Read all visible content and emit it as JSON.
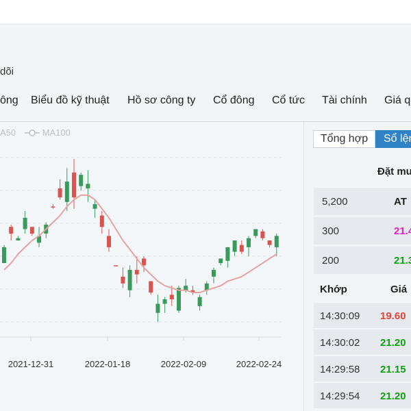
{
  "page": {
    "follow_label": "dõi",
    "tabs": [
      "ông",
      "Biểu đồ kỹ thuật",
      "Hồ sơ công ty",
      "Cổ đông",
      "Cổ tức",
      "Tài chính",
      "Giá q"
    ],
    "legend": {
      "ma50": "A50",
      "ma100": "MA100"
    }
  },
  "colors": {
    "up": "#3a9a5c",
    "down": "#d9534f",
    "ma_line": "#e5a3a0",
    "accent": "#2f82c6"
  },
  "chart_data": {
    "type": "candlestick",
    "x_tick_labels": [
      "2021-12-31",
      "2022-01-18",
      "2022-02-09",
      "2022-02-24"
    ],
    "grid": "horizontal dashed",
    "candles": [
      {
        "open": 20.3,
        "close": 21.0,
        "high": 21.1,
        "low": 20.3,
        "dir": "up"
      },
      {
        "open": 21.9,
        "close": 21.6,
        "high": 22.0,
        "low": 21.3,
        "dir": "down"
      },
      {
        "open": 21.3,
        "close": 21.4,
        "high": 21.5,
        "low": 21.3,
        "dir": "up"
      },
      {
        "open": 21.8,
        "close": 22.3,
        "high": 22.6,
        "low": 21.6,
        "dir": "up"
      },
      {
        "open": 21.9,
        "close": 21.6,
        "high": 21.9,
        "low": 21.5,
        "dir": "down"
      },
      {
        "open": 21.2,
        "close": 21.5,
        "high": 21.9,
        "low": 21.0,
        "dir": "up"
      },
      {
        "open": 21.6,
        "close": 22.0,
        "high": 22.1,
        "low": 21.4,
        "dir": "up"
      },
      {
        "open": 22.8,
        "close": 22.8,
        "high": 22.9,
        "low": 22.7,
        "dir": "down"
      },
      {
        "open": 23.6,
        "close": 23.2,
        "high": 24.0,
        "low": 23.1,
        "dir": "down"
      },
      {
        "open": 23.0,
        "close": 23.9,
        "high": 24.5,
        "low": 22.6,
        "dir": "up"
      },
      {
        "open": 24.3,
        "close": 23.2,
        "high": 24.9,
        "low": 22.7,
        "dir": "down"
      },
      {
        "open": 23.7,
        "close": 24.2,
        "high": 24.3,
        "low": 23.5,
        "dir": "up"
      },
      {
        "open": 23.6,
        "close": 23.8,
        "high": 24.4,
        "low": 23.0,
        "dir": "up"
      },
      {
        "open": 22.7,
        "close": 22.9,
        "high": 23.1,
        "low": 22.3,
        "dir": "up"
      },
      {
        "open": 22.4,
        "close": 21.9,
        "high": 22.6,
        "low": 21.6,
        "dir": "down"
      },
      {
        "open": 21.5,
        "close": 21.0,
        "high": 21.8,
        "low": 20.8,
        "dir": "down"
      },
      {
        "open": 20.2,
        "close": 20.2,
        "high": 20.2,
        "low": 20.2,
        "dir": "down"
      },
      {
        "open": 19.7,
        "close": 19.4,
        "high": 20.1,
        "low": 19.2,
        "dir": "down"
      },
      {
        "open": 19.1,
        "close": 20.0,
        "high": 20.2,
        "low": 18.8,
        "dir": "up"
      },
      {
        "open": 20.0,
        "close": 19.8,
        "high": 20.6,
        "low": 19.4,
        "dir": "down"
      },
      {
        "open": 20.5,
        "close": 20.2,
        "high": 20.6,
        "low": 19.9,
        "dir": "down"
      },
      {
        "open": 19.5,
        "close": 19.0,
        "high": 19.5,
        "low": 18.9,
        "dir": "down"
      },
      {
        "open": 18.1,
        "close": 18.5,
        "high": 18.9,
        "low": 17.7,
        "dir": "up"
      },
      {
        "open": 18.5,
        "close": 18.7,
        "high": 18.8,
        "low": 18.1,
        "dir": "up"
      },
      {
        "open": 18.9,
        "close": 18.7,
        "high": 19.3,
        "low": 18.4,
        "dir": "down"
      },
      {
        "open": 18.2,
        "close": 19.2,
        "high": 19.3,
        "low": 18.1,
        "dir": "up"
      },
      {
        "open": 19.1,
        "close": 19.3,
        "high": 19.6,
        "low": 19.0,
        "dir": "up"
      },
      {
        "open": 19.1,
        "close": 19.0,
        "high": 19.3,
        "low": 18.9,
        "dir": "down"
      },
      {
        "open": 18.4,
        "close": 18.8,
        "high": 18.9,
        "low": 18.2,
        "dir": "up"
      },
      {
        "open": 19.1,
        "close": 19.4,
        "high": 19.5,
        "low": 18.9,
        "dir": "up"
      },
      {
        "open": 19.7,
        "close": 20.0,
        "high": 20.1,
        "low": 19.4,
        "dir": "up"
      },
      {
        "open": 20.3,
        "close": 20.5,
        "high": 20.5,
        "low": 20.2,
        "dir": "up"
      },
      {
        "open": 20.4,
        "close": 21.0,
        "high": 21.0,
        "low": 20.1,
        "dir": "up"
      },
      {
        "open": 20.8,
        "close": 21.3,
        "high": 21.3,
        "low": 20.6,
        "dir": "up"
      },
      {
        "open": 21.1,
        "close": 20.8,
        "high": 21.3,
        "low": 20.7,
        "dir": "down"
      },
      {
        "open": 21.0,
        "close": 21.4,
        "high": 21.5,
        "low": 20.6,
        "dir": "up"
      },
      {
        "open": 21.5,
        "close": 21.8,
        "high": 21.8,
        "low": 21.4,
        "dir": "up"
      },
      {
        "open": 21.7,
        "close": 21.4,
        "high": 21.8,
        "low": 21.3,
        "dir": "down"
      },
      {
        "open": 21.3,
        "close": 21.1,
        "high": 21.3,
        "low": 21.0,
        "dir": "down"
      },
      {
        "open": 21.0,
        "close": 21.5,
        "high": 21.6,
        "low": 20.6,
        "dir": "up"
      }
    ],
    "ma_line": [
      20.0,
      20.3,
      20.7,
      21.0,
      21.3,
      21.5,
      21.8,
      22.1,
      22.4,
      22.8,
      23.1,
      23.3,
      23.3,
      23.1,
      22.7,
      22.3,
      21.8,
      21.3,
      20.9,
      20.5,
      20.1,
      19.8,
      19.5,
      19.3,
      19.2,
      19.1,
      19.1,
      19.0,
      19.0,
      19.1,
      19.2,
      19.3,
      19.5,
      19.6,
      19.7,
      19.9,
      20.1,
      20.3,
      20.5,
      20.7
    ]
  },
  "order_book": {
    "title": "Đặt mu",
    "rows": [
      {
        "qty": "5,200",
        "price": "AT",
        "color": "#222222"
      },
      {
        "qty": "300",
        "price": "21.4",
        "color": "#e020c0"
      },
      {
        "qty": "200",
        "price": "21.3",
        "color": "#11a011"
      }
    ]
  },
  "segmented": {
    "tab1": "Tổng hợp",
    "tab2": "Sổ lệnh"
  },
  "trade_history": {
    "headers": {
      "time": "Khớp",
      "price": "Giá"
    },
    "rows": [
      {
        "time": "14:30:09",
        "price": "19.60",
        "color": "#e0443c"
      },
      {
        "time": "14:30:02",
        "price": "21.20",
        "color": "#11a011"
      },
      {
        "time": "14:29:58",
        "price": "21.15",
        "color": "#11a011"
      },
      {
        "time": "14:29:54",
        "price": "21.20",
        "color": "#11a011"
      }
    ]
  }
}
